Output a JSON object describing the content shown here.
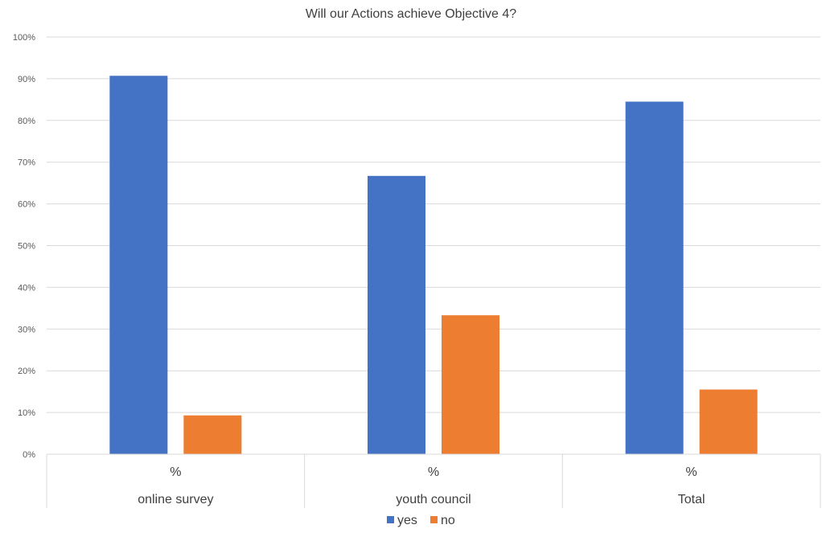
{
  "chart_data": {
    "type": "bar",
    "title": "Will our Actions achieve Objective 4?",
    "groups": [
      "online survey",
      "youth council",
      "Total"
    ],
    "subcategory": "%",
    "series": [
      {
        "name": "yes",
        "color": "#4472C4",
        "values": [
          90.7,
          66.7,
          84.5
        ]
      },
      {
        "name": "no",
        "color": "#ED7D31",
        "values": [
          9.3,
          33.3,
          15.5
        ]
      }
    ],
    "ylim": [
      0,
      100
    ],
    "yticks": [
      0,
      10,
      20,
      30,
      40,
      50,
      60,
      70,
      80,
      90,
      100
    ],
    "ytick_labels": [
      "0%",
      "10%",
      "20%",
      "30%",
      "40%",
      "50%",
      "60%",
      "70%",
      "80%",
      "90%",
      "100%"
    ],
    "grid": true,
    "legend_position": "bottom"
  }
}
